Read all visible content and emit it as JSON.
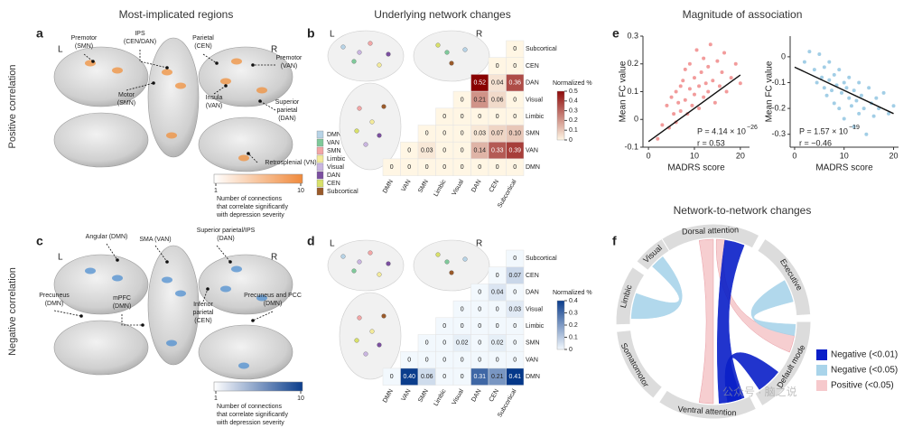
{
  "titles": {
    "a": "Most-implicated regions",
    "b": "Underlying network changes",
    "e": "Magnitude of association",
    "f": "Network-to-network changes"
  },
  "row_labels": [
    "Positive correlation",
    "Negative correlation"
  ],
  "panel_letters": [
    "a",
    "b",
    "c",
    "d",
    "e",
    "f"
  ],
  "panel_a": {
    "hemispheres": [
      "L",
      "R"
    ],
    "regions": [
      [
        "Premotor",
        "(SMN)"
      ],
      [
        "IPS",
        "(CEN/DAN)"
      ],
      [
        "Parietal",
        "(CEN)"
      ],
      [
        "Premotor",
        "(VAN)"
      ],
      [
        "Motor",
        "(SMN)"
      ],
      [
        "Insula",
        "(VAN)"
      ],
      [
        "Superior",
        "parietal",
        "(DAN)"
      ],
      [
        "Retrosplenial (VN)"
      ]
    ],
    "colorbar": {
      "ticks": [
        1,
        10
      ],
      "colors": [
        "#ffffff",
        "#f08a3c"
      ],
      "caption": [
        "Number of connections",
        "that correlate significantly",
        "with depression severity"
      ]
    }
  },
  "panel_c": {
    "hemispheres": [
      "L",
      "R"
    ],
    "regions": [
      [
        "Angular (DMN)"
      ],
      [
        "SMA (VAN)"
      ],
      [
        "Superior parietal/IPS",
        "(DAN)"
      ],
      [
        "Precuneus",
        "(DMN)"
      ],
      [
        "mPFC",
        "(DMN)"
      ],
      [
        "Inferior",
        "parietal",
        "(CEN)"
      ],
      [
        "Precuneus and PCC",
        "(DMN)"
      ]
    ],
    "colorbar": {
      "ticks": [
        1,
        10
      ],
      "colors": [
        "#ffffff",
        "#0b3d8c"
      ],
      "caption": [
        "Number of connections",
        "that correlate significantly",
        "with depression severity"
      ]
    }
  },
  "networks": {
    "names": [
      "DMN",
      "VAN",
      "SMN",
      "Limbic",
      "Visual",
      "DAN",
      "CEN",
      "Subcortical"
    ],
    "colors": [
      "#b7d3e6",
      "#7fc99a",
      "#f2a6a6",
      "#f3ea9a",
      "#c9b5e0",
      "#7b4fa0",
      "#d8e06a",
      "#9a5a2a"
    ]
  },
  "panel_b": {
    "hemispheres": [
      "L",
      "R"
    ],
    "rows": [
      "Subcortical",
      "CEN",
      "DAN",
      "Visual",
      "Limbic",
      "SMN",
      "VAN",
      "DMN"
    ],
    "columns": [
      "DMN",
      "VAN",
      "SMN",
      "Limbic",
      "Visual",
      "DAN",
      "CEN",
      "Subcortical"
    ],
    "values": [
      [
        0
      ],
      [
        0,
        0
      ],
      [
        0.52,
        0.04,
        0.36
      ],
      [
        0,
        0.21,
        0.06,
        0
      ],
      [
        0,
        0,
        0,
        0,
        0
      ],
      [
        0,
        0,
        0,
        0.03,
        0.07,
        0.1
      ],
      [
        0,
        0.03,
        0,
        0,
        0.14,
        0.33,
        0.39
      ],
      [
        0,
        0,
        0,
        0,
        0,
        0,
        0,
        0
      ]
    ],
    "value_labels": [
      [
        "0"
      ],
      [
        "0",
        "0"
      ],
      [
        "0.52",
        "0.04",
        "0.36"
      ],
      [
        "0",
        "0.21",
        "0.06",
        "0"
      ],
      [
        "0",
        "0",
        "0",
        "0",
        "0"
      ],
      [
        "0",
        "0",
        "0",
        "0.03",
        "0.07",
        "0.10"
      ],
      [
        "0",
        "0.03",
        "0",
        "0",
        "0.14",
        "0.33",
        "0.39"
      ],
      [
        "0",
        "0",
        "0",
        "0",
        "0",
        "0",
        "0",
        "0"
      ]
    ],
    "colorbar": {
      "title": "Normalized %",
      "ticks": [
        0.5,
        0.4,
        0.3,
        0.2,
        0.1,
        0
      ],
      "colors": [
        "#fff6e4",
        "#8e0a0a"
      ]
    }
  },
  "panel_d": {
    "hemispheres": [
      "L",
      "R"
    ],
    "rows": [
      "Subcortical",
      "CEN",
      "DAN",
      "Visual",
      "Limbic",
      "SMN",
      "VAN",
      "DMN"
    ],
    "columns": [
      "DMN",
      "VAN",
      "SMN",
      "Limbic",
      "Visual",
      "DAN",
      "CEN",
      "Subcortical"
    ],
    "values": [
      [
        0
      ],
      [
        0,
        0.07
      ],
      [
        0,
        0.04,
        0
      ],
      [
        0,
        0,
        0,
        0.03
      ],
      [
        0,
        0,
        0,
        0,
        0
      ],
      [
        0,
        0,
        0.02,
        0,
        0.02,
        0
      ],
      [
        0,
        0,
        0,
        0,
        0,
        0,
        0
      ],
      [
        0,
        0.4,
        0.06,
        0,
        0,
        0.31,
        0.21,
        0.41
      ]
    ],
    "value_labels": [
      [
        "0"
      ],
      [
        "0",
        "0.07"
      ],
      [
        "0",
        "0.04",
        "0"
      ],
      [
        "0",
        "0",
        "0",
        "0.03"
      ],
      [
        "0",
        "0",
        "0",
        "0",
        "0"
      ],
      [
        "0",
        "0",
        "0.02",
        "0",
        "0.02",
        "0"
      ],
      [
        "0",
        "0",
        "0",
        "0",
        "0",
        "0",
        "0"
      ],
      [
        "0",
        "0.40",
        "0.06",
        "0",
        "0",
        "0.31",
        "0.21",
        "0.41"
      ]
    ],
    "colorbar": {
      "title": "Normalized %",
      "ticks": [
        0.4,
        0.3,
        0.2,
        0.1,
        0
      ],
      "colors": [
        "#f2f8fd",
        "#0b3d8c"
      ]
    }
  },
  "panel_e": [
    {
      "type": "scatter",
      "x_label": "MADRS score",
      "y_label": "Mean FC value",
      "color": "#f08a8a",
      "xlim": [
        -1.2,
        22
      ],
      "ylim": [
        -0.1,
        0.3
      ],
      "xticks": [
        0,
        10,
        20
      ],
      "yticks": [
        -0.1,
        0,
        0.1,
        0.2,
        0.3
      ],
      "annotation": {
        "p": "P = 4.14 × 10",
        "exponent": "−26",
        "r": "r = 0.53"
      },
      "x": [
        2,
        3,
        4,
        4.5,
        5,
        5.5,
        6,
        6,
        6.5,
        7,
        7,
        7.5,
        8,
        8,
        8.5,
        9,
        9,
        9.5,
        10,
        10,
        10.5,
        11,
        11,
        11.5,
        12,
        12,
        12.5,
        13,
        13,
        13.5,
        14,
        14.5,
        15,
        15.5,
        16,
        16.5,
        17,
        18,
        19,
        20
      ],
      "y": [
        -0.07,
        -0.02,
        0.05,
        -0.03,
        0.08,
        0.02,
        0.1,
        -0.01,
        0.06,
        0.12,
        0.03,
        0.14,
        0.07,
        0.18,
        0.02,
        0.11,
        0.2,
        0.05,
        0.09,
        0.15,
        0.25,
        0.04,
        0.12,
        0.17,
        0.08,
        0.22,
        0.13,
        0.19,
        0.1,
        0.27,
        0.14,
        0.06,
        0.21,
        0.12,
        0.17,
        0.24,
        0.1,
        0.15,
        0.2,
        0.13
      ],
      "fit_line": {
        "x": [
          0,
          20
        ],
        "y": [
          -0.08,
          0.16
        ]
      }
    },
    {
      "type": "scatter",
      "x_label": "MADRS score",
      "y_label": "Mean FC value",
      "color": "#92c6e2",
      "xlim": [
        -0.9,
        21
      ],
      "ylim": [
        -0.35,
        0.08
      ],
      "xticks": [
        0,
        10,
        20
      ],
      "yticks": [
        -0.3,
        -0.2,
        -0.1,
        0
      ],
      "annotation": {
        "p": "P = 1.57 × 10",
        "exponent": "−19",
        "r": "r = −0.46"
      },
      "x": [
        2,
        3,
        4,
        4.5,
        5,
        5.5,
        6,
        6,
        6.5,
        7,
        7,
        7.5,
        8,
        8,
        8.5,
        9,
        9,
        9.5,
        10,
        10,
        10.5,
        11,
        11,
        11.5,
        12,
        12,
        12.5,
        13,
        13,
        13.5,
        14,
        14.5,
        15,
        15.5,
        16,
        16.5,
        17,
        18,
        19,
        20
      ],
      "y": [
        -0.02,
        0.02,
        -0.05,
        -0.1,
        0.01,
        -0.08,
        -0.12,
        -0.04,
        -0.15,
        -0.09,
        -0.02,
        -0.13,
        -0.18,
        -0.07,
        -0.11,
        -0.2,
        -0.05,
        -0.14,
        -0.1,
        -0.24,
        -0.12,
        -0.16,
        -0.08,
        -0.19,
        -0.27,
        -0.13,
        -0.17,
        -0.1,
        -0.22,
        -0.15,
        -0.2,
        -0.3,
        -0.12,
        -0.18,
        -0.23,
        -0.16,
        -0.2,
        -0.14,
        -0.22,
        -0.19
      ],
      "fit_line": {
        "x": [
          0,
          20
        ],
        "y": [
          -0.04,
          -0.22
        ]
      }
    }
  ],
  "panel_f": {
    "networks": [
      "Dorsal attention",
      "Executive",
      "Default mode",
      "Ventral attention",
      "Somatomotor",
      "Limbic",
      "Visual"
    ],
    "legend": [
      {
        "label": "Negative (<0.01)",
        "color": "#0a1fc8"
      },
      {
        "label": "Negative (<0.05)",
        "color": "#a9d4ea"
      },
      {
        "label": "Positive (<0.05)",
        "color": "#f6c9cc"
      }
    ]
  },
  "watermark": "公众号 · 脑之说"
}
